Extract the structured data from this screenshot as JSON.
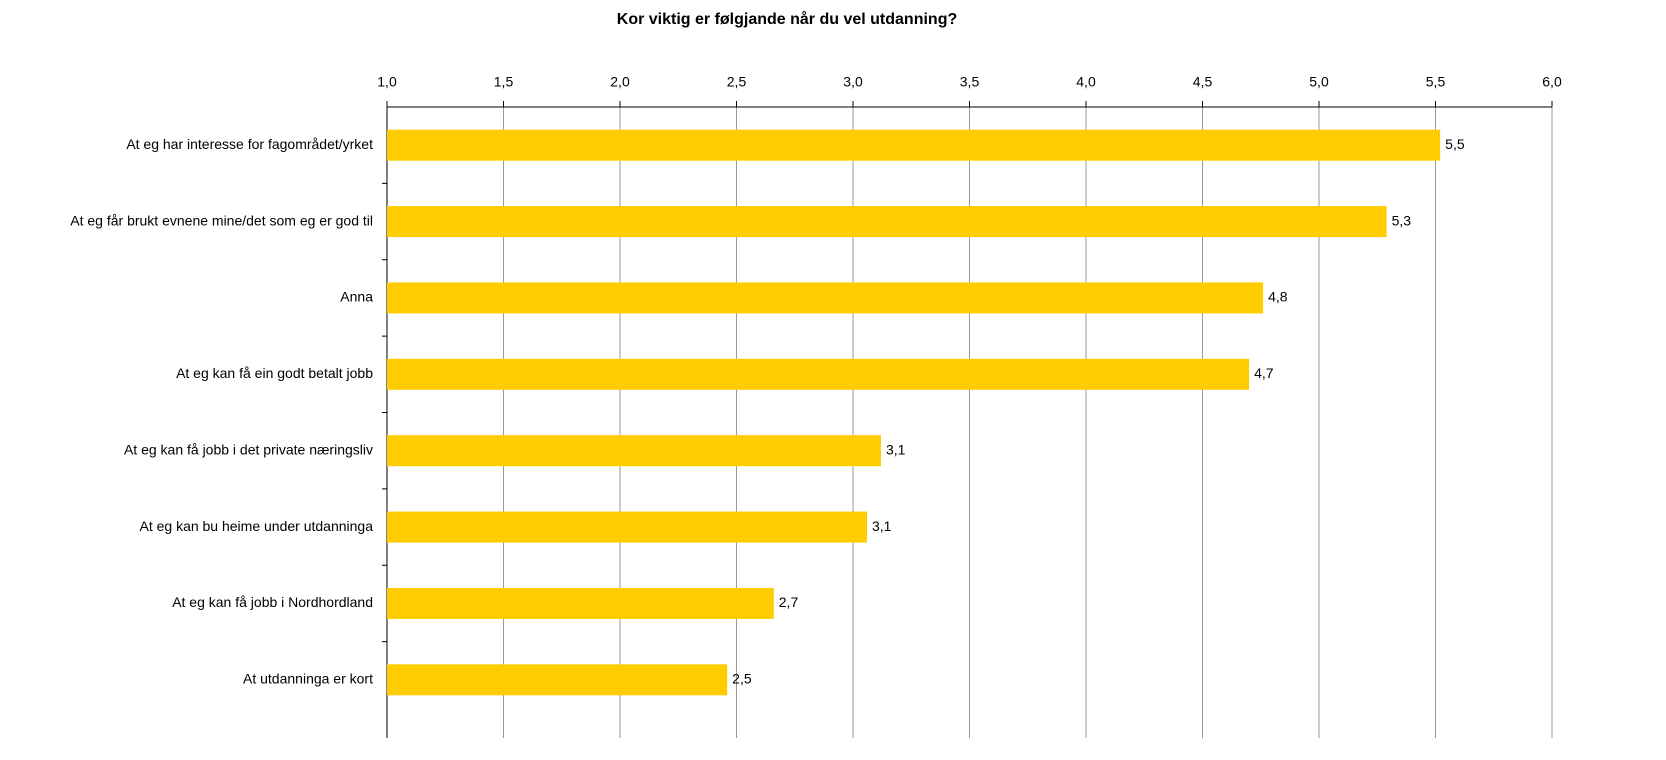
{
  "chart_data": {
    "type": "bar",
    "orientation": "horizontal",
    "title": "Kor viktig er følgjande når du vel utdanning?",
    "categories": [
      "At eg har interesse for fagområdet/yrket",
      "At eg får brukt evnene mine/det som eg er god til",
      "Anna",
      "At eg kan få ein godt betalt jobb",
      "At eg kan få jobb i det private næringsliv",
      "At eg kan bu heime under utdanninga",
      "At eg kan få jobb i Nordhordland",
      "At utdanninga er kort"
    ],
    "values": [
      5.52,
      5.29,
      4.76,
      4.7,
      3.12,
      3.06,
      2.66,
      2.46
    ],
    "value_labels": [
      "5,5",
      "5,3",
      "4,8",
      "4,7",
      "3,1",
      "3,1",
      "2,7",
      "2,5"
    ],
    "color": "#ffcc00",
    "xlim": [
      1,
      6
    ],
    "xticks": [
      {
        "value": 1,
        "label": "1,0"
      },
      {
        "value": 1.5,
        "label": "1,5"
      },
      {
        "value": 2,
        "label": "2,0"
      },
      {
        "value": 2.5,
        "label": "2,5"
      },
      {
        "value": 3,
        "label": "3,0"
      },
      {
        "value": 3.5,
        "label": "3,5"
      },
      {
        "value": 4,
        "label": "4,0"
      },
      {
        "value": 4.5,
        "label": "4,5"
      },
      {
        "value": 5,
        "label": "5,0"
      },
      {
        "value": 5.5,
        "label": "5,5"
      },
      {
        "value": 6,
        "label": "6,0"
      }
    ],
    "grid": true
  }
}
